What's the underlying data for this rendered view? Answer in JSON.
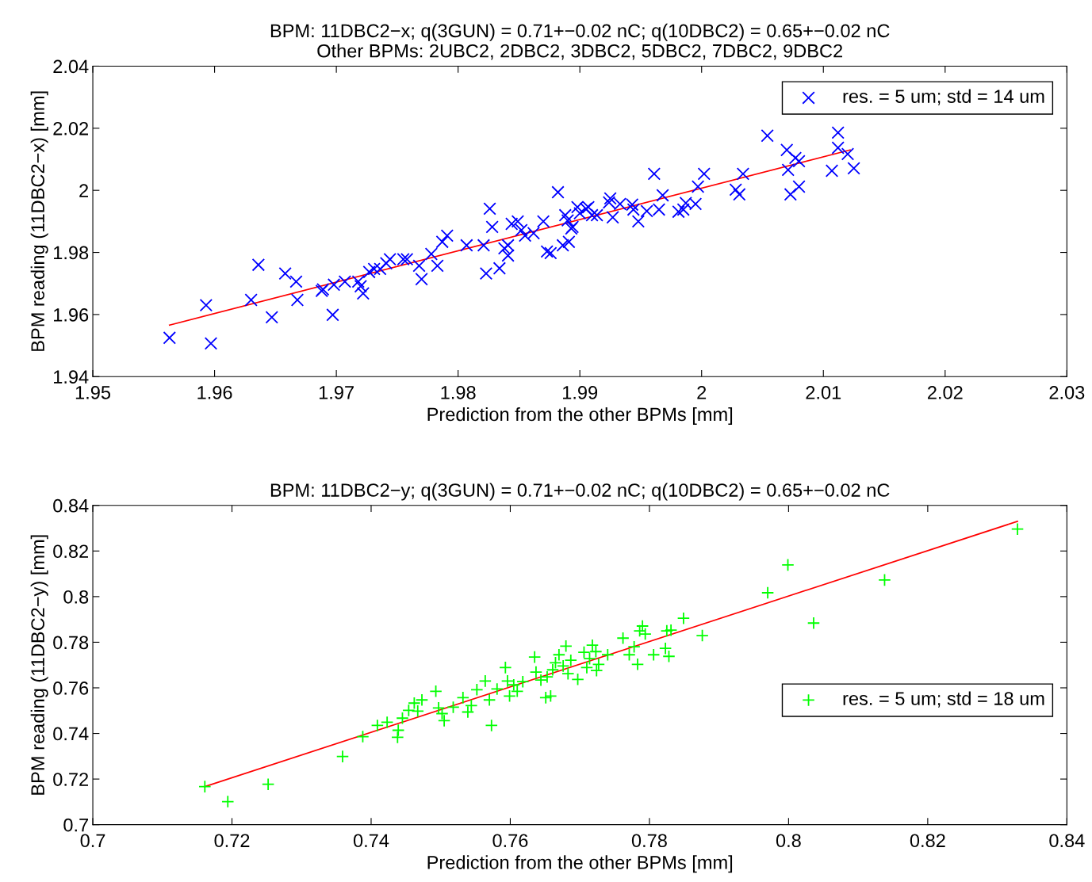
{
  "chart_data": [
    {
      "type": "scatter",
      "title": "BPM: 11DBC2−x; q(3GUN) = 0.71+−0.02 nC; q(10DBC2) = 0.65+−0.02 nC",
      "subtitle": "Other BPMs: 2UBC2, 2DBC2, 3DBC2, 5DBC2, 7DBC2, 9DBC2",
      "xlabel": "Prediction from the other BPMs [mm]",
      "ylabel": "BPM reading (11DBC2−x) [mm]",
      "xlim": [
        1.95,
        2.03
      ],
      "ylim": [
        1.94,
        2.04
      ],
      "xticks": [
        1.95,
        1.96,
        1.97,
        1.98,
        1.99,
        2,
        2.01,
        2.02,
        2.03
      ],
      "yticks": [
        1.94,
        1.96,
        1.98,
        2,
        2.02,
        2.04
      ],
      "grid": false,
      "legend": "top right",
      "series": [
        {
          "name": "res. = 5 um; std = 14 um",
          "marker": "cross",
          "color": "#0000ff",
          "x": [
            1.9563,
            1.9593,
            1.9597,
            1.963,
            1.9636,
            1.9647,
            1.9658,
            1.9667,
            1.9668,
            1.9688,
            1.9697,
            1.9689,
            1.9698,
            1.9707,
            1.9718,
            1.972,
            1.9722,
            1.9727,
            1.9731,
            1.9736,
            1.9741,
            1.9744,
            1.9755,
            1.9758,
            1.9768,
            1.977,
            1.9778,
            1.9783,
            1.9787,
            1.9791,
            1.9807,
            1.9821,
            1.9823,
            1.9828,
            1.9826,
            1.9834,
            1.9838,
            1.9841,
            1.9841,
            1.9844,
            1.9849,
            1.9852,
            1.9855,
            1.9862,
            1.987,
            1.9873,
            1.9876,
            1.9882,
            1.9886,
            1.9888,
            1.989,
            1.9891,
            1.9893,
            1.9894,
            1.9898,
            1.99,
            1.9905,
            1.9907,
            1.991,
            1.9914,
            1.9924,
            1.9925,
            1.9927,
            1.9933,
            1.9943,
            1.9944,
            1.9948,
            1.9955,
            1.9961,
            1.9965,
            1.9968,
            1.9981,
            1.9985,
            1.9987,
            1.9995,
            1.9997,
            2.0002,
            2.0028,
            2.0031,
            2.0034,
            2.0054,
            2.007,
            2.0071,
            2.0073,
            2.0077,
            2.008,
            2.0107,
            2.0112,
            2.0112,
            2.012,
            2.0125,
            2.008
          ],
          "values": [
            1.9525,
            1.963,
            1.9507,
            1.9647,
            1.976,
            1.9591,
            1.9732,
            1.9706,
            1.9647,
            1.9676,
            1.9599,
            1.9681,
            1.9696,
            1.9706,
            1.9706,
            1.9691,
            1.9668,
            1.9737,
            1.9747,
            1.9747,
            1.9765,
            1.9778,
            1.9778,
            1.9778,
            1.9757,
            1.9714,
            1.9795,
            1.9757,
            1.9834,
            1.9854,
            1.9823,
            1.9823,
            1.9732,
            1.9882,
            1.9941,
            1.9749,
            1.9813,
            1.9823,
            1.979,
            1.9892,
            1.99,
            1.9872,
            1.9854,
            1.9862,
            1.99,
            1.9803,
            1.9798,
            1.9994,
            1.9823,
            1.992,
            1.9903,
            1.9834,
            1.9877,
            1.9882,
            1.9946,
            1.9926,
            1.9941,
            1.9946,
            1.992,
            1.992,
            1.9961,
            1.9974,
            1.9913,
            1.9956,
            1.9954,
            1.9938,
            1.99,
            1.9933,
            2.0053,
            1.9938,
            1.9984,
            1.9931,
            1.9938,
            1.9959,
            1.9956,
            2.0012,
            2.0053,
            2.0002,
            1.9987,
            2.0053,
            2.0176,
            2.013,
            2.0066,
            1.9987,
            2.0104,
            2.0012,
            2.0063,
            2.0186,
            2.0137,
            2.0117,
            2.0071,
            2.0094
          ]
        },
        {
          "type": "line",
          "color": "#ff0000",
          "line_style": "solid",
          "x": [
            1.9563,
            2.0122
          ],
          "values": [
            1.9566,
            2.013
          ]
        }
      ]
    },
    {
      "type": "scatter",
      "title": "BPM: 11DBC2−y; q(3GUN) = 0.71+−0.02 nC; q(10DBC2) = 0.65+−0.02 nC",
      "xlabel": "Prediction from the other BPMs [mm]",
      "ylabel": "BPM reading (11DBC2−y) [mm]",
      "xlim": [
        0.7,
        0.84
      ],
      "ylim": [
        0.7,
        0.84
      ],
      "xticks": [
        0.7,
        0.72,
        0.74,
        0.76,
        0.78,
        0.8,
        0.82,
        0.84
      ],
      "yticks": [
        0.7,
        0.72,
        0.74,
        0.76,
        0.78,
        0.8,
        0.82,
        0.84
      ],
      "grid": false,
      "legend": "right",
      "series": [
        {
          "name": "res. = 5 um; std = 18 um",
          "marker": "plus",
          "color": "#00ff00",
          "x": [
            0.7161,
            0.7194,
            0.7252,
            0.7359,
            0.7388,
            0.7409,
            0.7423,
            0.7438,
            0.7439,
            0.7445,
            0.7454,
            0.7462,
            0.7467,
            0.7473,
            0.7493,
            0.7497,
            0.7502,
            0.7505,
            0.7518,
            0.7532,
            0.7539,
            0.7544,
            0.7552,
            0.7564,
            0.757,
            0.7573,
            0.7581,
            0.7593,
            0.7596,
            0.7599,
            0.7605,
            0.761,
            0.7618,
            0.7635,
            0.7637,
            0.7644,
            0.7651,
            0.7653,
            0.7658,
            0.7661,
            0.7665,
            0.767,
            0.7676,
            0.768,
            0.7683,
            0.7687,
            0.7697,
            0.7706,
            0.771,
            0.7714,
            0.7718,
            0.7723,
            0.7724,
            0.7727,
            0.774,
            0.7762,
            0.7771,
            0.7778,
            0.7783,
            0.7786,
            0.779,
            0.7794,
            0.7806,
            0.7823,
            0.7825,
            0.7828,
            0.7831,
            0.7849,
            0.7876,
            0.797,
            0.7999,
            0.8036,
            0.8138,
            0.8329
          ],
          "values": [
            0.7167,
            0.7101,
            0.7177,
            0.7299,
            0.7386,
            0.7435,
            0.7449,
            0.7383,
            0.7414,
            0.7467,
            0.7501,
            0.7533,
            0.7498,
            0.7547,
            0.7585,
            0.7512,
            0.7487,
            0.7456,
            0.7515,
            0.7557,
            0.7494,
            0.7522,
            0.7592,
            0.763,
            0.7547,
            0.7435,
            0.7595,
            0.7689,
            0.763,
            0.7564,
            0.7613,
            0.7585,
            0.7627,
            0.7735,
            0.7669,
            0.7634,
            0.7557,
            0.7648,
            0.7564,
            0.7679,
            0.771,
            0.7745,
            0.7696,
            0.7783,
            0.7662,
            0.7721,
            0.7637,
            0.7756,
            0.7689,
            0.7728,
            0.7787,
            0.7759,
            0.7676,
            0.7703,
            0.7745,
            0.7818,
            0.7745,
            0.778,
            0.7703,
            0.785,
            0.7871,
            0.7836,
            0.7745,
            0.7773,
            0.785,
            0.7738,
            0.7853,
            0.7905,
            0.7829,
            0.8017,
            0.8139,
            0.7884,
            0.8073,
            0.8296
          ]
        },
        {
          "type": "line",
          "color": "#ff0000",
          "line_style": "solid",
          "x": [
            0.7161,
            0.8329
          ],
          "values": [
            0.7167,
            0.833
          ]
        }
      ]
    }
  ]
}
